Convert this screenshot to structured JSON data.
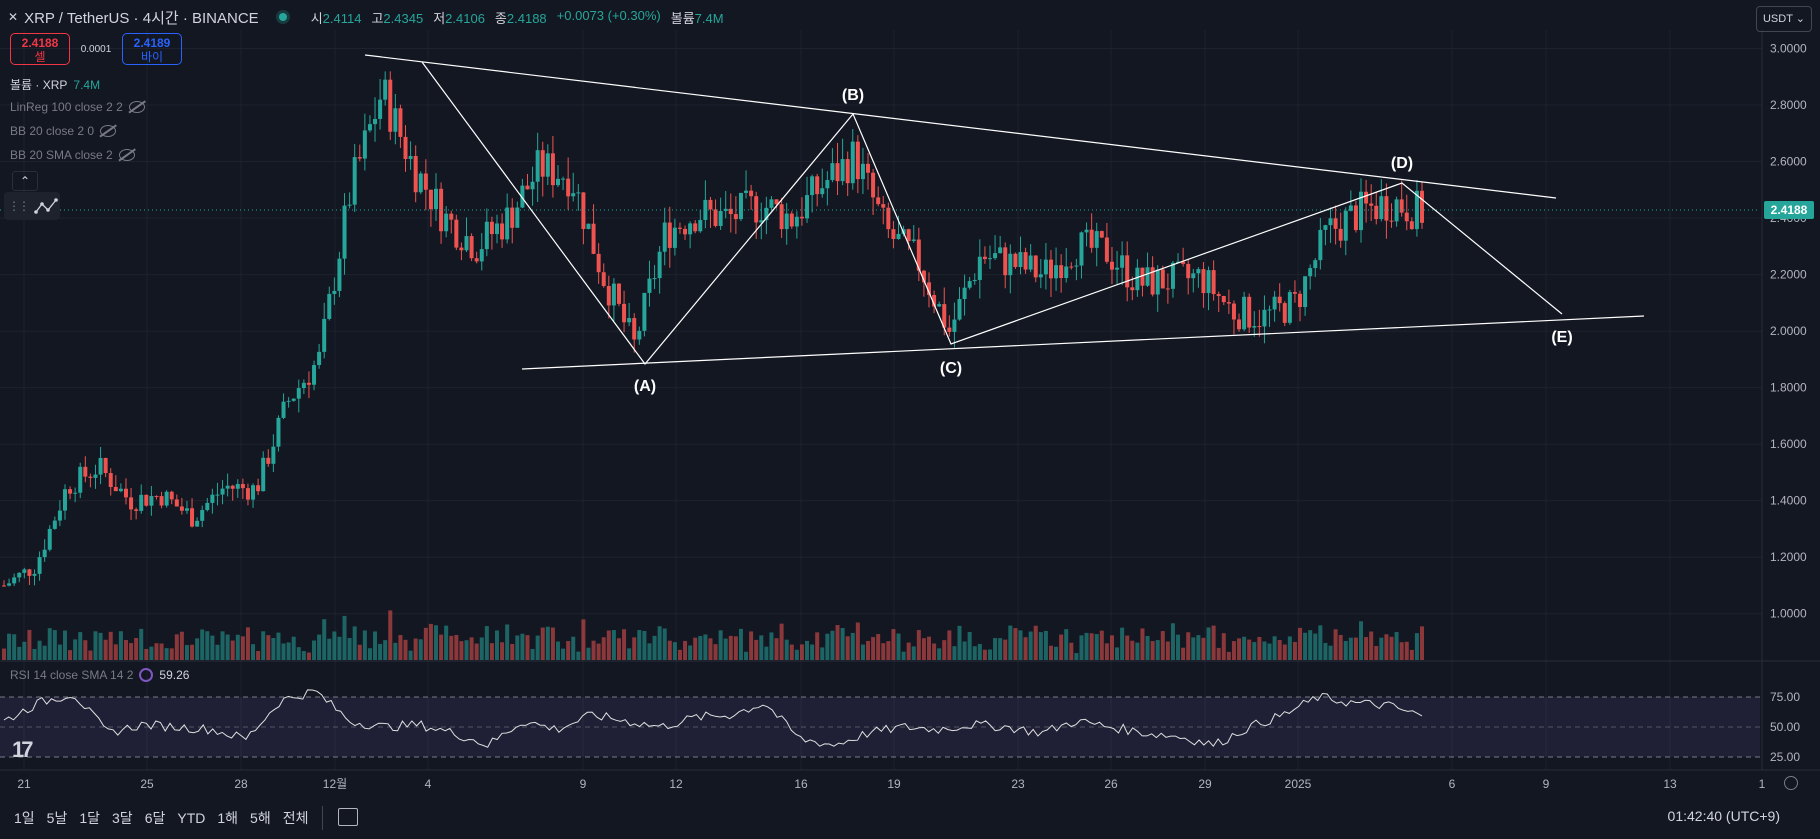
{
  "header": {
    "symbol": "XRP / TetherUS · 4시간 · BINANCE",
    "ohlc": [
      {
        "label": "시",
        "value": "2.4114"
      },
      {
        "label": "고",
        "value": "2.4345"
      },
      {
        "label": "저",
        "value": "2.4106"
      },
      {
        "label": "종",
        "value": "2.4188"
      }
    ],
    "change": "+0.0073 (+0.30%)",
    "volume_label": "볼륨",
    "volume_value": "7.4M",
    "currency_button": "USDT"
  },
  "trade": {
    "sell_price": "2.4188",
    "sell_label": "셀",
    "spread": "0.0001",
    "buy_price": "2.4189",
    "buy_label": "바이"
  },
  "indicators": {
    "volume": {
      "label": "볼륨 · XRP",
      "value": "7.4M"
    },
    "linreg": "LinReg 100 close 2 2",
    "bb1": "BB 20 close 2 0",
    "bb2": "BB 20 SMA close 2",
    "rsi": {
      "label": "RSI 14 close SMA 14 2",
      "value": "59.26"
    }
  },
  "price_scale": {
    "ticks": [
      "3.0000",
      "2.8000",
      "2.6000",
      "2.4000",
      "2.2000",
      "2.0000",
      "1.8000",
      "1.6000",
      "1.4000",
      "1.2000",
      "1.0000"
    ],
    "last_price": "2.4188"
  },
  "rsi_scale": {
    "ticks": [
      "75.00",
      "50.00",
      "25.00"
    ]
  },
  "time_axis": [
    "21",
    "25",
    "28",
    "12월",
    "4",
    "9",
    "12",
    "16",
    "19",
    "23",
    "26",
    "29",
    "2025",
    "6",
    "9",
    "13",
    "1"
  ],
  "wave_labels": [
    "(A)",
    "(B)",
    "(C)",
    "(D)",
    "(E)"
  ],
  "bottom_bar": {
    "ranges": [
      "1일",
      "5날",
      "1달",
      "3달",
      "6달",
      "YTD",
      "1해",
      "5해",
      "전체"
    ],
    "clock": "01:42:40 (UTC+9)"
  },
  "colors": {
    "up": "#26a69a",
    "down": "#ef5350",
    "background": "#131722",
    "grid": "#1e222d",
    "lines": "#ffffff"
  },
  "chart_data": {
    "type": "candlestick",
    "title": "XRP / TetherUS · 4시간 · BINANCE",
    "price_range": [
      0.9,
      3.03
    ],
    "close_path": [
      {
        "x": "21",
        "y": 1.1
      },
      {
        "x": "22",
        "y": 1.17
      },
      {
        "x": "23",
        "y": 1.45
      },
      {
        "x": "24",
        "y": 1.52
      },
      {
        "x": "25",
        "y": 1.4
      },
      {
        "x": "26",
        "y": 1.42
      },
      {
        "x": "27",
        "y": 1.34
      },
      {
        "x": "28",
        "y": 1.45
      },
      {
        "x": "29",
        "y": 1.44
      },
      {
        "x": "30",
        "y": 1.75
      },
      {
        "x": "12월 1",
        "y": 1.9
      },
      {
        "x": "2",
        "y": 2.5
      },
      {
        "x": "3",
        "y": 2.85
      },
      {
        "x": "4",
        "y": 2.58
      },
      {
        "x": "5",
        "y": 2.4
      },
      {
        "x": "6",
        "y": 2.3
      },
      {
        "x": "7",
        "y": 2.4
      },
      {
        "x": "8",
        "y": 2.58
      },
      {
        "x": "9",
        "y": 2.55
      },
      {
        "x": "10",
        "y": 2.2
      },
      {
        "x": "11",
        "y": 1.95
      },
      {
        "x": "12",
        "y": 2.35
      },
      {
        "x": "13",
        "y": 2.42
      },
      {
        "x": "14",
        "y": 2.4
      },
      {
        "x": "15",
        "y": 2.45
      },
      {
        "x": "16",
        "y": 2.4
      },
      {
        "x": "17",
        "y": 2.52
      },
      {
        "x": "18",
        "y": 2.62
      },
      {
        "x": "19",
        "y": 2.35
      },
      {
        "x": "20",
        "y": 2.25
      },
      {
        "x": "21",
        "y": 2.0
      },
      {
        "x": "22",
        "y": 2.27
      },
      {
        "x": "23",
        "y": 2.24
      },
      {
        "x": "24",
        "y": 2.2
      },
      {
        "x": "25",
        "y": 2.3
      },
      {
        "x": "26",
        "y": 2.28
      },
      {
        "x": "27",
        "y": 2.17
      },
      {
        "x": "28",
        "y": 2.18
      },
      {
        "x": "29",
        "y": 2.19
      },
      {
        "x": "30",
        "y": 2.07
      },
      {
        "x": "31",
        "y": 2.05
      },
      {
        "x": "2025",
        "y": 2.1
      },
      {
        "x": "2",
        "y": 2.35
      },
      {
        "x": "3",
        "y": 2.42
      },
      {
        "x": "4",
        "y": 2.46
      },
      {
        "x": "5",
        "y": 2.42
      }
    ],
    "rsi_path": [
      55,
      70,
      78,
      45,
      52,
      50,
      48,
      40,
      72,
      80,
      55,
      50,
      52,
      45,
      35,
      55,
      48,
      60,
      55,
      50,
      58,
      60,
      70,
      40,
      35,
      45,
      50,
      48,
      52,
      50,
      45,
      55,
      50,
      45,
      42,
      35,
      50,
      60,
      75,
      70,
      68,
      59
    ]
  }
}
